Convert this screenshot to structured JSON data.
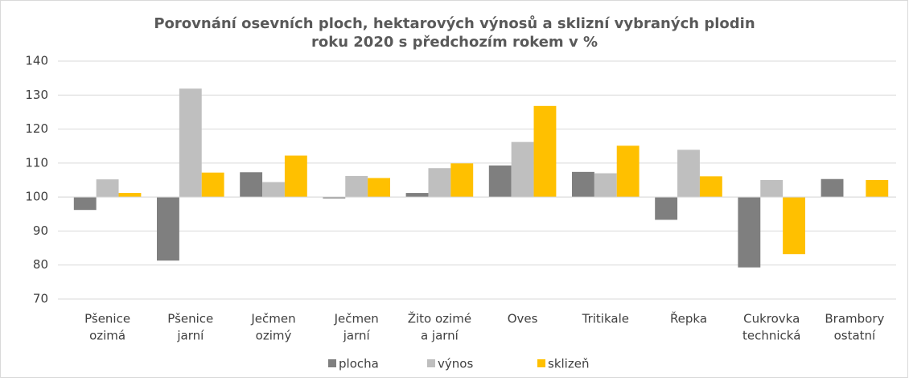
{
  "chart_data": {
    "type": "bar",
    "title": [
      "Porovnání osevních ploch, hektarových výnosů a sklizní vybraných plodin",
      "roku 2020 s předchozím rokem v %"
    ],
    "categories": [
      [
        "Pšenice",
        "ozimá"
      ],
      [
        "Pšenice",
        "jarní"
      ],
      [
        "Ječmen",
        "ozimý"
      ],
      [
        "Ječmen",
        "jarní"
      ],
      [
        "Žito ozimé",
        "a jarní"
      ],
      [
        "Oves"
      ],
      [
        "Tritikale"
      ],
      [
        "Řepka"
      ],
      [
        "Cukrovka",
        "technická"
      ],
      [
        "Brambory",
        "ostatní"
      ]
    ],
    "series": [
      {
        "name": "plocha",
        "color": "#7f7f7f",
        "values": [
          96.2,
          81.3,
          107.3,
          99.6,
          101.2,
          109.3,
          107.4,
          93.3,
          79.3,
          105.3
        ]
      },
      {
        "name": "výnos",
        "color": "#bfbfbf",
        "values": [
          105.2,
          131.9,
          104.4,
          106.2,
          108.5,
          116.2,
          107.0,
          113.9,
          105.0,
          null
        ]
      },
      {
        "name": "sklizeň",
        "color": "#ffc000",
        "values": [
          101.2,
          107.2,
          112.2,
          105.6,
          109.9,
          126.8,
          115.1,
          106.1,
          83.2,
          105.0
        ]
      }
    ],
    "baseline": 100,
    "ylim": [
      70,
      140
    ],
    "yticks": [
      70,
      80,
      90,
      100,
      110,
      120,
      130,
      140
    ],
    "grid": true,
    "legend": "bottom"
  }
}
